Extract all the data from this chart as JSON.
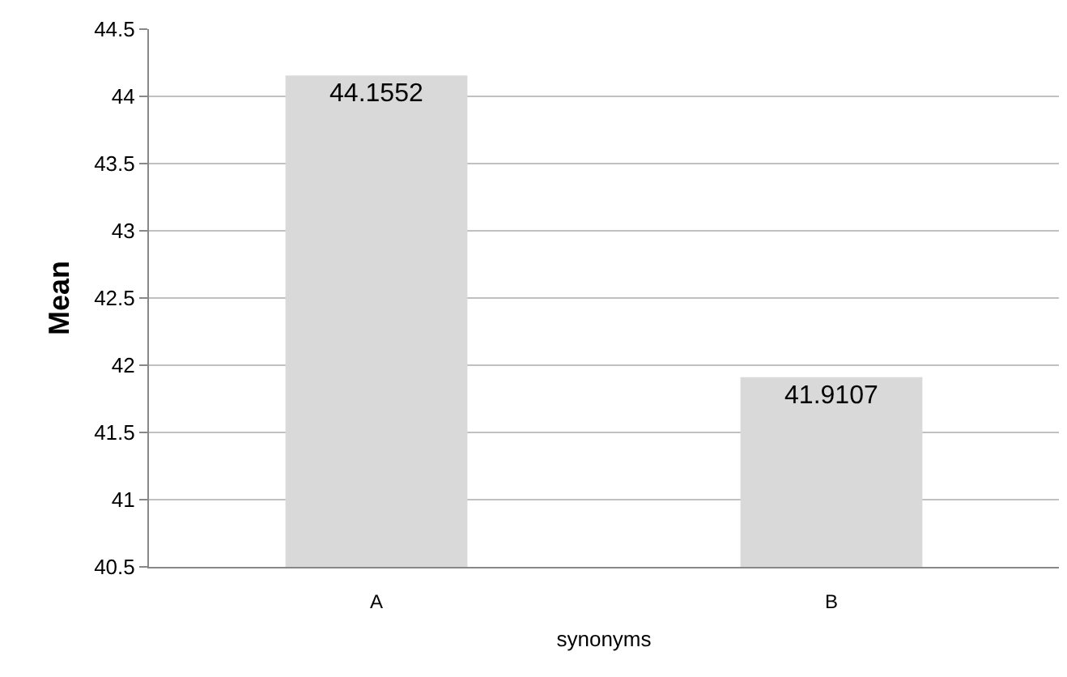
{
  "chart_data": {
    "type": "bar",
    "xlabel": "synonyms",
    "ylabel": "Mean",
    "categories": [
      "A",
      "B"
    ],
    "values": [
      44.1552,
      41.9107
    ],
    "color": "#d9d9d9",
    "ylim": [
      40.5,
      44.5
    ],
    "yticks": [
      40.5,
      41,
      41.5,
      42,
      42.5,
      43,
      43.5,
      44,
      44.5
    ],
    "grid": "y",
    "data_labels": true
  }
}
